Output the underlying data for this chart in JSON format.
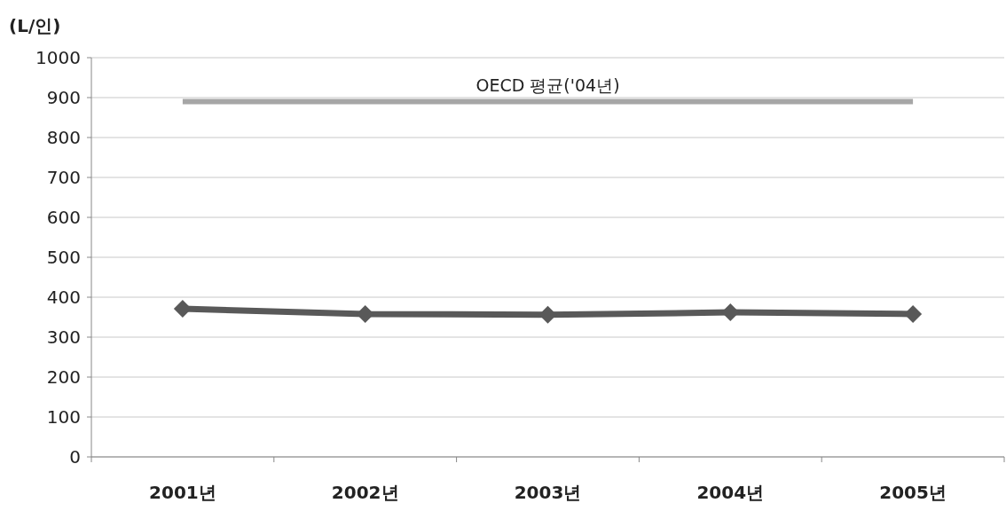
{
  "chart_data": {
    "type": "line",
    "ylabel": "(L/인)",
    "categories": [
      "2001년",
      "2002년",
      "2003년",
      "2004년",
      "2005년"
    ],
    "series": [
      {
        "color": "#595959",
        "marker": "diamond",
        "values": [
          371,
          358,
          356,
          362,
          358
        ]
      },
      {
        "name": "OECD 평균('04년)",
        "color": "#a6a6a6",
        "marker": "none",
        "values": [
          890,
          890,
          890,
          890,
          890
        ]
      }
    ],
    "ylim": [
      0,
      1000
    ],
    "yticks": [
      0,
      100,
      200,
      300,
      400,
      500,
      600,
      700,
      800,
      900,
      1000
    ],
    "grid": "y"
  }
}
